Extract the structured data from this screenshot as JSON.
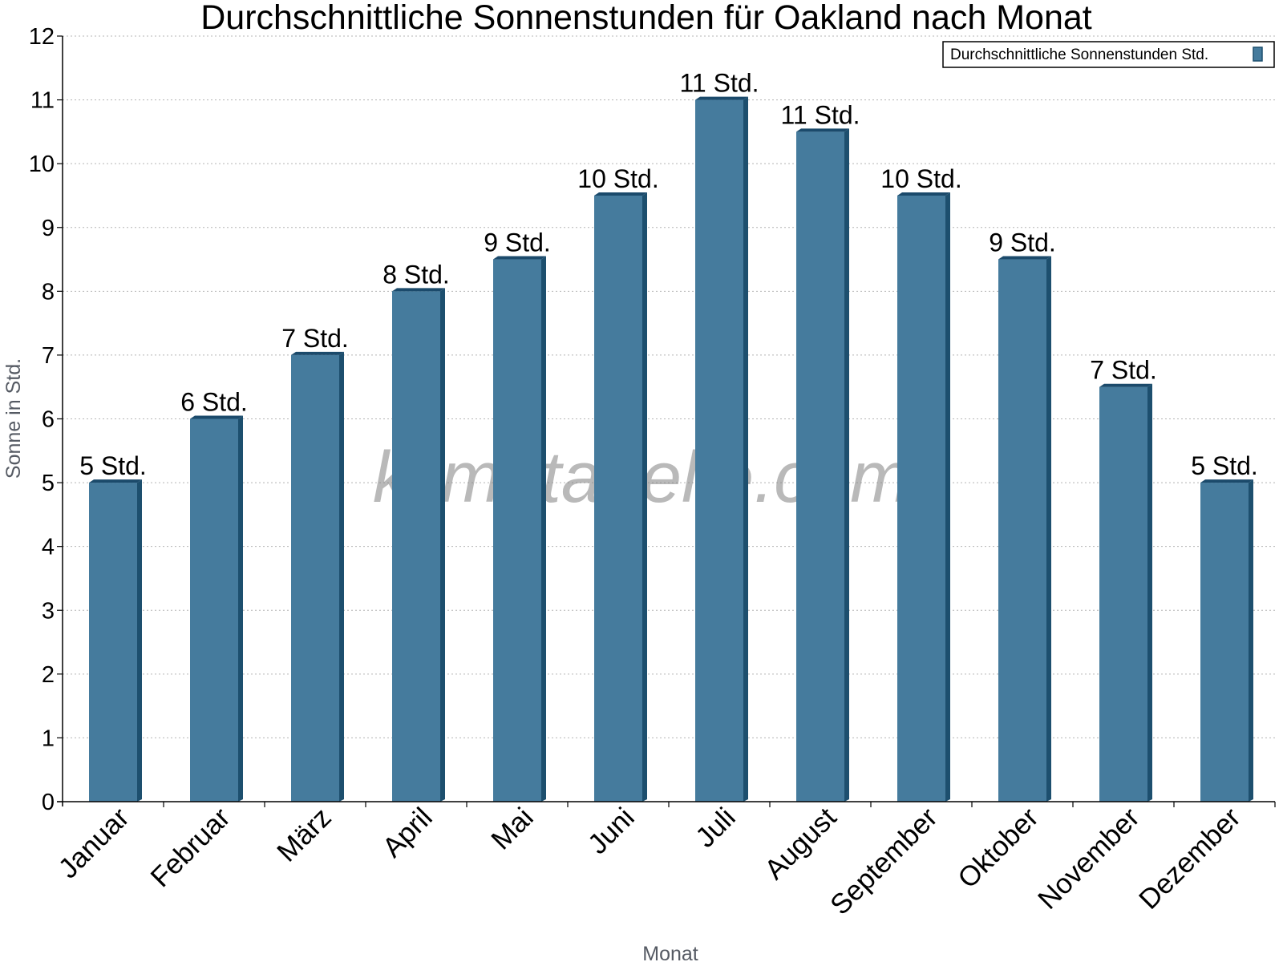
{
  "chart_data": {
    "type": "bar",
    "title": "Durchschnittliche Sonnenstunden für Oakland nach Monat",
    "xlabel": "Monat",
    "ylabel": "Sonne in Std.",
    "ylim": [
      0,
      12
    ],
    "yticks": [
      0,
      1,
      2,
      3,
      4,
      5,
      6,
      7,
      8,
      9,
      10,
      11,
      12
    ],
    "grid": "horizontal dotted",
    "legend_position": "top-right",
    "categories": [
      "Januar",
      "Februar",
      "März",
      "April",
      "Mai",
      "Juni",
      "Juli",
      "August",
      "September",
      "Oktober",
      "November",
      "Dezember"
    ],
    "series": [
      {
        "name": "Durchschnittliche Sonnenstunden Std.",
        "values": [
          5,
          6,
          7,
          8,
          8.5,
          9.5,
          11,
          10.5,
          9.5,
          8.5,
          6.5,
          5
        ],
        "labels": [
          "5 Std.",
          "6 Std.",
          "7 Std.",
          "8 Std.",
          "9 Std.",
          "10 Std.",
          "11 Std.",
          "11 Std.",
          "10 Std.",
          "9 Std.",
          "7 Std.",
          "5 Std."
        ],
        "color": "#457b9d",
        "side_color": "#1d4f6e",
        "top_color": "#1b4a6b"
      }
    ],
    "watermark": "klimatabelle.com"
  }
}
